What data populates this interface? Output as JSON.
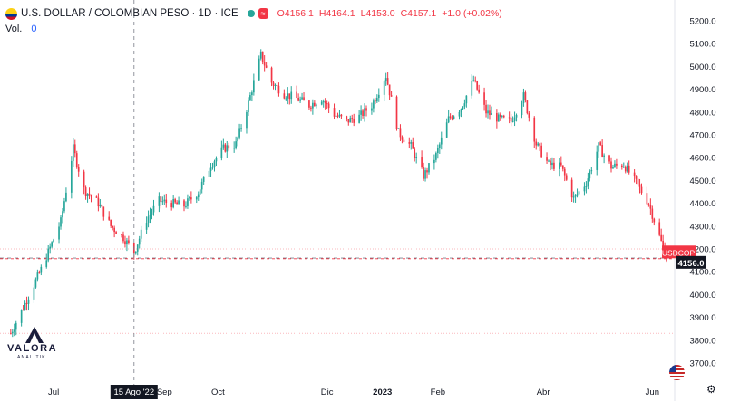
{
  "header": {
    "title": "U.S. DOLLAR / COLOMBIAN PESO · 1D · ICE",
    "badge": "≈",
    "open": "O4156.1",
    "high": "H4164.1",
    "low": "L4153.0",
    "close": "C4157.1",
    "change": "+1.0 (+0.02%)"
  },
  "volume": {
    "label": "Vol.",
    "value": "0"
  },
  "watermark": {
    "name": "VALORA",
    "sub": "ANALITIK"
  },
  "colors": {
    "up": "#26a69a",
    "down": "#f23645",
    "crosshair_label_bg": "#131722",
    "price_label_bg": "#f23645"
  },
  "chart_data": {
    "type": "candlestick",
    "symbol_tag": "USDCOP",
    "last_price": "4156.0",
    "crosshair_date_label": "15 Ago '22",
    "crosshair_price": 4160,
    "ylim": [
      3650,
      5250
    ],
    "y_ticks": [
      "5200.0",
      "5100.0",
      "5000.0",
      "4900.0",
      "4800.0",
      "4700.0",
      "4600.0",
      "4500.0",
      "4400.0",
      "4300.0",
      "4200.0",
      "4100.0",
      "4000.0",
      "3900.0",
      "3800.0",
      "3700.0"
    ],
    "x_ticks": [
      "Jul",
      "Sep",
      "Oct",
      "Dic",
      "2023",
      "Feb",
      "Abr",
      "Jun"
    ],
    "grid": false,
    "close_path": [
      [
        "2022-06-07",
        3830
      ],
      [
        "2022-06-15",
        3960
      ],
      [
        "2022-06-24",
        4110
      ],
      [
        "2022-07-05",
        4320
      ],
      [
        "2022-07-12",
        4640
      ],
      [
        "2022-07-18",
        4460
      ],
      [
        "2022-07-26",
        4400
      ],
      [
        "2022-08-02",
        4300
      ],
      [
        "2022-08-09",
        4250
      ],
      [
        "2022-08-15",
        4185
      ],
      [
        "2022-08-22",
        4330
      ],
      [
        "2022-08-29",
        4410
      ],
      [
        "2022-09-05",
        4400
      ],
      [
        "2022-09-12",
        4390
      ],
      [
        "2022-09-20",
        4450
      ],
      [
        "2022-09-27",
        4570
      ],
      [
        "2022-10-04",
        4640
      ],
      [
        "2022-10-11",
        4660
      ],
      [
        "2022-10-18",
        4840
      ],
      [
        "2022-10-25",
        5050
      ],
      [
        "2022-10-31",
        4930
      ],
      [
        "2022-11-07",
        4880
      ],
      [
        "2022-11-14",
        4860
      ],
      [
        "2022-11-21",
        4830
      ],
      [
        "2022-11-28",
        4860
      ],
      [
        "2022-12-05",
        4790
      ],
      [
        "2022-12-12",
        4760
      ],
      [
        "2022-12-19",
        4780
      ],
      [
        "2022-12-26",
        4830
      ],
      [
        "2023-01-03",
        4960
      ],
      [
        "2023-01-10",
        4710
      ],
      [
        "2023-01-17",
        4650
      ],
      [
        "2023-01-24",
        4520
      ],
      [
        "2023-01-31",
        4610
      ],
      [
        "2023-02-07",
        4770
      ],
      [
        "2023-02-14",
        4820
      ],
      [
        "2023-02-21",
        4940
      ],
      [
        "2023-02-28",
        4800
      ],
      [
        "2023-03-07",
        4770
      ],
      [
        "2023-03-14",
        4760
      ],
      [
        "2023-03-21",
        4870
      ],
      [
        "2023-03-28",
        4660
      ],
      [
        "2023-04-04",
        4570
      ],
      [
        "2023-04-11",
        4560
      ],
      [
        "2023-04-18",
        4420
      ],
      [
        "2023-04-25",
        4490
      ],
      [
        "2023-05-02",
        4650
      ],
      [
        "2023-05-09",
        4560
      ],
      [
        "2023-05-16",
        4570
      ],
      [
        "2023-05-23",
        4490
      ],
      [
        "2023-05-30",
        4400
      ],
      [
        "2023-06-06",
        4230
      ],
      [
        "2023-06-09",
        4157
      ]
    ]
  }
}
